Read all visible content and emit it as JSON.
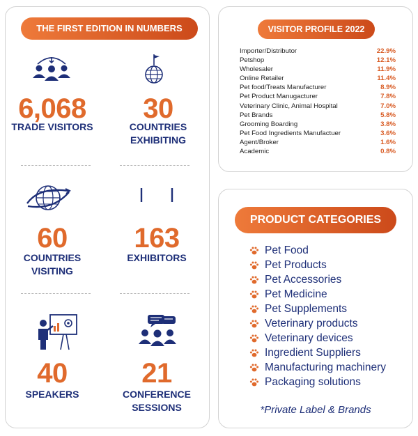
{
  "left": {
    "title": "THE FIRST EDITION IN NUMBERS",
    "stats": [
      {
        "number": "6,068",
        "label1": "TRADE VISITORS",
        "label2": "",
        "icon": "people-group-icon"
      },
      {
        "number": "30",
        "label1": "COUNTRIES",
        "label2": "EXHIBITING",
        "icon": "globe-flag-icon"
      },
      {
        "number": "60",
        "label1": "COUNTRIES",
        "label2": "VISITING",
        "icon": "globe-orbit-icon"
      },
      {
        "number": "163",
        "label1": "EXHIBITORS",
        "label2": "",
        "icon": "exhibitor-bars-icon"
      },
      {
        "number": "40",
        "label1": "SPEAKERS",
        "label2": "",
        "icon": "presenter-board-icon"
      },
      {
        "number": "21",
        "label1": "CONFERENCE",
        "label2": "SESSIONS",
        "icon": "audience-chat-icon"
      }
    ]
  },
  "visitor_profile": {
    "title": "VISITOR PROFILE 2022",
    "rows": [
      {
        "name": "Importer/Distributor",
        "value": "22.9%"
      },
      {
        "name": "Petshop",
        "value": "12.1%"
      },
      {
        "name": "Wholesaler",
        "value": "11.9%"
      },
      {
        "name": "Online Retailer",
        "value": "11.4%"
      },
      {
        "name": "Pet food/Treats Manufacturer",
        "value": "8.9%"
      },
      {
        "name": "Pet Product Manugacturer",
        "value": "7.8%"
      },
      {
        "name": "Veterinary Clinic, Animal Hospital",
        "value": "7.0%"
      },
      {
        "name": "Pet Brands",
        "value": "5.8%"
      },
      {
        "name": "Grooming Boarding",
        "value": "3.8%"
      },
      {
        "name": "Pet Food Ingredients Manufactuer",
        "value": "3.6%"
      },
      {
        "name": "Agent/Broker",
        "value": "1.6%"
      },
      {
        "name": "Academic",
        "value": "0.8%"
      }
    ]
  },
  "product_categories": {
    "title": "PRODUCT CATEGORIES",
    "items": [
      "Pet Food",
      "Pet Products",
      "Pet Accessories",
      "Pet Medicine",
      "Pet Supplements",
      "Veterinary products",
      "Veterinary devices",
      "Ingredient Suppliers",
      "Manufacturing machinery",
      "Packaging solutions"
    ],
    "note": "*Private Label & Brands"
  },
  "colors": {
    "accent": "#e06a2c",
    "navy": "#1e2f78",
    "pill_start": "#ee7a3a",
    "pill_end": "#cc4a1a"
  }
}
